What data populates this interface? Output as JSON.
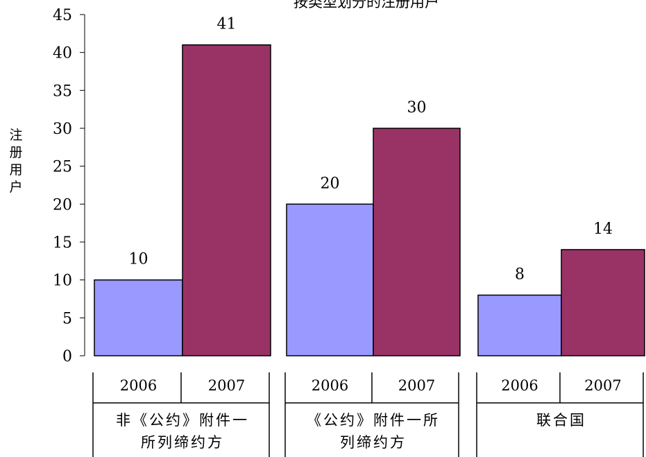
{
  "chart_data": {
    "type": "bar",
    "title": "按类型划分的注册用户",
    "ylabel": "注册用户",
    "ylim": [
      0,
      45
    ],
    "yticks": [
      0,
      5,
      10,
      15,
      20,
      25,
      30,
      35,
      40,
      45
    ],
    "groups": [
      {
        "label_lines": [
          "非《公约》附件一",
          "所列缔约方"
        ]
      },
      {
        "label_lines": [
          "《公约》附件一所",
          "列缔约方"
        ]
      },
      {
        "label_lines": [
          "联合国"
        ]
      }
    ],
    "series": [
      {
        "name": "2006",
        "color": "#9999ff",
        "values": [
          10,
          20,
          8
        ],
        "labels": [
          "10",
          "20",
          "8"
        ]
      },
      {
        "name": "2007",
        "color": "#993366",
        "values": [
          41,
          30,
          14
        ],
        "labels": [
          "41",
          "30",
          "14"
        ]
      }
    ],
    "grid": false,
    "legend": "none"
  }
}
